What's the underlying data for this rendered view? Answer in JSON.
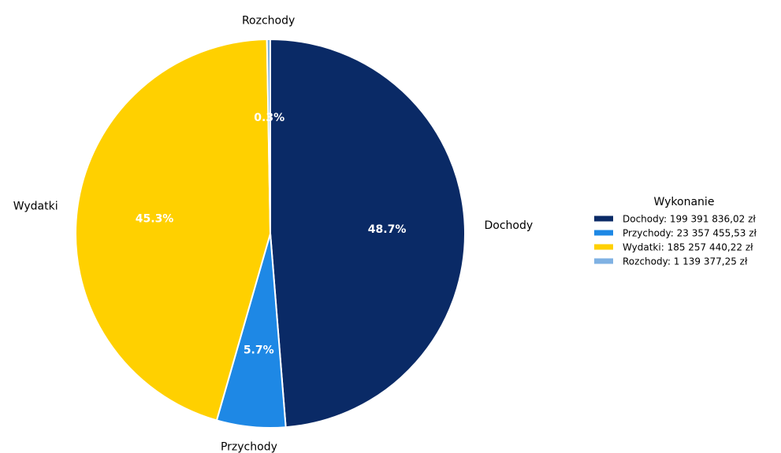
{
  "chart_data": {
    "type": "pie",
    "start_angle_deg": 90,
    "direction": "clockwise",
    "legend": {
      "title": "Wykonanie",
      "position": "right"
    },
    "slices": [
      {
        "label": "Dochody",
        "value": 199391836.02,
        "percent": "48.7%",
        "legend_text": "Dochody: 199 391 836,02 zł",
        "color": "#0a2a66"
      },
      {
        "label": "Przychody",
        "value": 23357455.53,
        "percent": "5.7%",
        "legend_text": "Przychody: 23 357 455,53 zł",
        "color": "#1e88e5"
      },
      {
        "label": "Wydatki",
        "value": 185257440.22,
        "percent": "45.3%",
        "legend_text": "Wydatki: 185 257 440,22 zł",
        "color": "#ffd000"
      },
      {
        "label": "Rozchody",
        "value": 1139377.25,
        "percent": "0.3%",
        "legend_text": "Rozchody: 1 139 377,25 zł",
        "color": "#7fb1e3"
      }
    ]
  }
}
